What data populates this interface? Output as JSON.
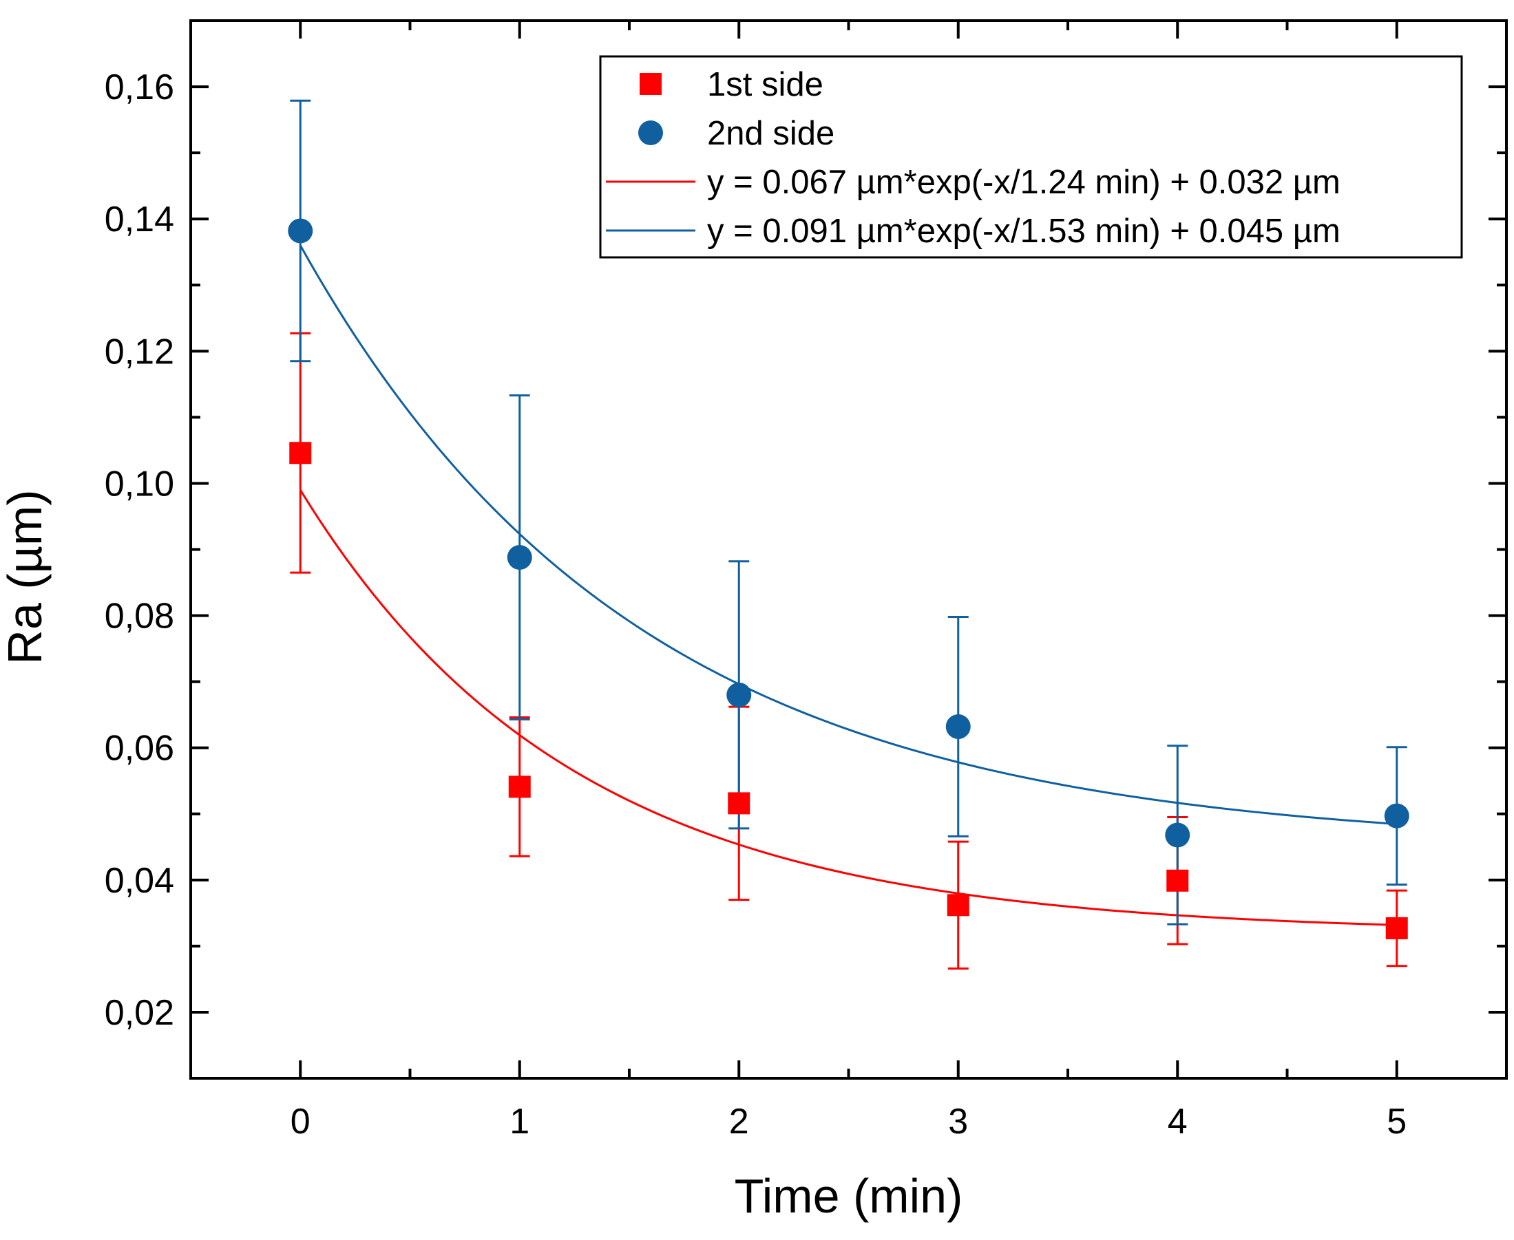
{
  "chart_data": {
    "type": "scatter",
    "xlabel": "Time (min)",
    "ylabel": "Ra (µm)",
    "xlim": [
      -0.5,
      5.5
    ],
    "ylim": [
      0.01,
      0.17
    ],
    "x_ticks": [
      0,
      1,
      2,
      3,
      4,
      5
    ],
    "x_tick_labels": [
      "0",
      "1",
      "2",
      "3",
      "4",
      "5"
    ],
    "y_ticks": [
      0.02,
      0.04,
      0.06,
      0.08,
      0.1,
      0.12,
      0.14,
      0.16
    ],
    "y_tick_labels": [
      "0,02",
      "0,04",
      "0,06",
      "0,08",
      "0,10",
      "0,12",
      "0,14",
      "0,16"
    ],
    "grid": false,
    "legend_position": "top-right",
    "series": [
      {
        "name": "1st side",
        "marker": "square",
        "color": "#ff0000",
        "x": [
          0,
          1,
          2,
          3,
          4,
          5
        ],
        "y": [
          0.1046,
          0.0541,
          0.0516,
          0.0362,
          0.0399,
          0.0327
        ],
        "error": [
          0.0181,
          0.0105,
          0.0146,
          0.0096,
          0.0096,
          0.0057
        ]
      },
      {
        "name": "2nd side",
        "marker": "circle",
        "color": "#1060a0",
        "x": [
          0,
          1,
          2,
          3,
          4,
          5
        ],
        "y": [
          0.1382,
          0.0888,
          0.068,
          0.0632,
          0.0468,
          0.0497
        ],
        "error": [
          0.0197,
          0.0245,
          0.0202,
          0.0166,
          0.0135,
          0.0104
        ]
      }
    ],
    "fits": [
      {
        "name": "y = 0.067 µm*exp(-x/1.24 min) + 0.032 µm",
        "color": "#ff0000",
        "A": 0.067,
        "tau": 1.24,
        "y0": 0.032
      },
      {
        "name": "y = 0.091 µm*exp(-x/1.53 min) + 0.045 µm",
        "color": "#1060a0",
        "A": 0.091,
        "tau": 1.53,
        "y0": 0.045
      }
    ]
  }
}
